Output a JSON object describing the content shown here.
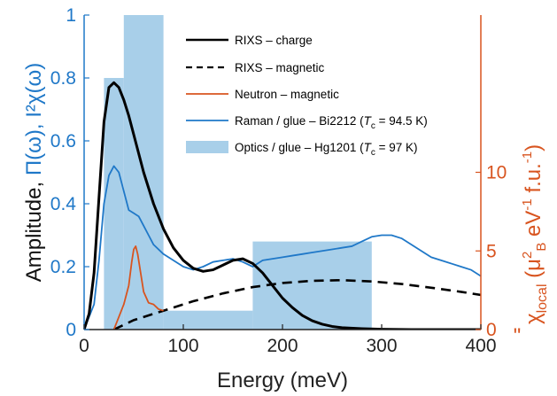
{
  "chart_data": {
    "type": "line",
    "xlabel": "Energy (meV)",
    "ylabel_left": {
      "prefix": "Amplitude, ",
      "blue": "Π(ω), I²χ(ω)"
    },
    "ylabel_right": {
      "main": "χ",
      "main_sub": "local",
      "paren_open": " (μ",
      "mu_sup": "2",
      "mu_sub": "B",
      "unit": " eV",
      "ev_sup": "-1",
      "fu": " f.u.",
      "fu_sup": "-1",
      "paren_close": ")",
      "quote_mark": "\""
    },
    "xlim": [
      0,
      400
    ],
    "ylim_left": [
      0,
      1
    ],
    "ylim_right": [
      0,
      20
    ],
    "x_ticks": [
      0,
      100,
      200,
      300,
      400
    ],
    "y_ticks_left": [
      0,
      0.2,
      0.4,
      0.6,
      0.8,
      1
    ],
    "y_tick_labels_left": [
      "0",
      "0.2",
      "0.4",
      "0.6",
      "0.8",
      "1"
    ],
    "y_ticks_right": [
      0,
      5,
      10
    ],
    "y_tick_labels_right": [
      "0",
      "5",
      "10"
    ],
    "legend_position": "top-right",
    "colors": {
      "left_axis": "#1f78c8",
      "right_axis": "#d8541f",
      "charge": "#000000",
      "magnetic": "#000000",
      "neutron": "#d8541f",
      "raman": "#1f78c8",
      "optics": "#a8cfe9"
    },
    "legend": [
      {
        "key": "charge",
        "label": "RIXS – charge",
        "style": "solid"
      },
      {
        "key": "magnetic",
        "label": "RIXS – magnetic",
        "style": "dashed"
      },
      {
        "key": "neutron",
        "label": "Neutron – magnetic",
        "style": "solid-thin"
      },
      {
        "key": "raman",
        "label_pre": "Raman / glue – Bi2212 (",
        "tc": "T",
        "tc_sub": "c",
        "label_post": " = 94.5 K)",
        "style": "solid-thin"
      },
      {
        "key": "optics",
        "label_pre": "Optics / glue – Hg1201 (",
        "tc": "T",
        "tc_sub": "c",
        "label_post": " = 97 K)",
        "style": "patch"
      }
    ],
    "series": [
      {
        "key": "optics",
        "axis": "left",
        "style": "histogram",
        "bins": [
          {
            "x0": 20,
            "x1": 40,
            "y": 0.8
          },
          {
            "x0": 40,
            "x1": 80,
            "y": 1.0
          },
          {
            "x0": 80,
            "x1": 170,
            "y": 0.06
          },
          {
            "x0": 170,
            "x1": 290,
            "y": 0.28
          }
        ]
      },
      {
        "key": "magnetic",
        "axis": "left",
        "style": "dashed",
        "x": [
          30,
          50,
          80,
          110,
          140,
          170,
          200,
          230,
          260,
          290,
          320,
          350,
          380,
          400
        ],
        "y": [
          0.0,
          0.03,
          0.06,
          0.09,
          0.115,
          0.135,
          0.148,
          0.155,
          0.157,
          0.153,
          0.145,
          0.133,
          0.12,
          0.11
        ]
      },
      {
        "key": "raman",
        "axis": "left",
        "style": "solid-thin",
        "x": [
          0,
          10,
          15,
          20,
          25,
          30,
          35,
          40,
          45,
          50,
          55,
          60,
          65,
          70,
          80,
          90,
          100,
          110,
          120,
          130,
          140,
          150,
          160,
          170,
          180,
          190,
          200,
          210,
          220,
          230,
          240,
          250,
          260,
          270,
          280,
          290,
          300,
          310,
          320,
          330,
          340,
          350,
          360,
          370,
          380,
          390,
          400
        ],
        "y": [
          0.0,
          0.08,
          0.22,
          0.4,
          0.49,
          0.52,
          0.5,
          0.44,
          0.38,
          0.37,
          0.36,
          0.33,
          0.3,
          0.27,
          0.24,
          0.22,
          0.2,
          0.19,
          0.2,
          0.215,
          0.22,
          0.225,
          0.215,
          0.2,
          0.22,
          0.225,
          0.23,
          0.235,
          0.24,
          0.245,
          0.25,
          0.255,
          0.26,
          0.265,
          0.28,
          0.295,
          0.3,
          0.3,
          0.29,
          0.27,
          0.25,
          0.23,
          0.22,
          0.21,
          0.2,
          0.19,
          0.17
        ]
      },
      {
        "key": "charge",
        "axis": "left",
        "style": "solid",
        "x": [
          0,
          5,
          10,
          15,
          20,
          25,
          30,
          35,
          40,
          45,
          50,
          60,
          70,
          80,
          90,
          100,
          110,
          120,
          130,
          140,
          150,
          160,
          170,
          180,
          190,
          200,
          210,
          220,
          230,
          240,
          250,
          260,
          280,
          300,
          330,
          360,
          400
        ],
        "y": [
          0.0,
          0.05,
          0.18,
          0.42,
          0.66,
          0.77,
          0.785,
          0.77,
          0.73,
          0.68,
          0.62,
          0.5,
          0.4,
          0.32,
          0.26,
          0.22,
          0.195,
          0.185,
          0.19,
          0.205,
          0.22,
          0.225,
          0.21,
          0.18,
          0.14,
          0.1,
          0.07,
          0.045,
          0.028,
          0.017,
          0.01,
          0.006,
          0.003,
          0.001,
          0.0,
          0.0,
          0.0
        ]
      },
      {
        "key": "neutron",
        "axis": "right",
        "style": "solid-thin",
        "x": [
          30,
          35,
          40,
          45,
          48,
          50,
          52,
          54,
          57,
          60,
          65,
          70,
          75,
          80
        ],
        "y": [
          0.0,
          0.8,
          1.6,
          2.8,
          4.3,
          5.1,
          5.3,
          4.8,
          3.6,
          2.4,
          1.7,
          1.6,
          1.3,
          1.2
        ]
      }
    ]
  }
}
